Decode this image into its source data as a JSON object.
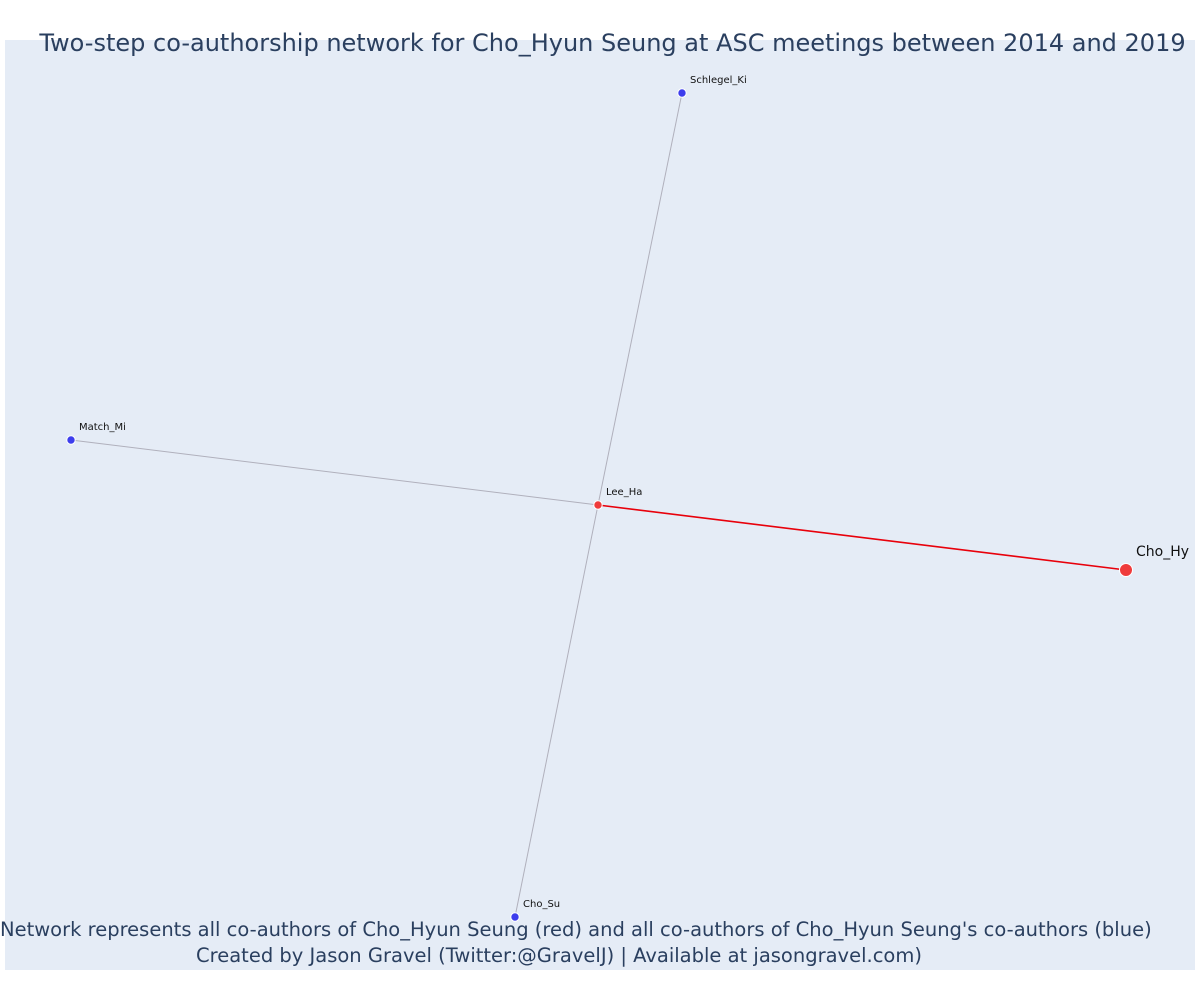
{
  "title": "Two-step co-authorship network for Cho_Hyun Seung at ASC meetings between 2014 and 2019",
  "caption": {
    "line1": "Network represents all co-authors of Cho_Hyun Seung (red) and all co-authors of Cho_Hyun Seung's co-authors (blue)",
    "line2": "Created by Jason Gravel (Twitter:@GravelJ) | Available at jasongravel.com)"
  },
  "colors": {
    "plot_background": "#e5ecf6",
    "first_step": "#ef3b3b",
    "second_step": "#3d3ded",
    "first_step_edge": "#e8000b",
    "second_step_edge": "#b0b0bc"
  },
  "nodes": [
    {
      "id": "schlegel",
      "label": "Schlegel_Ki",
      "group": "second-step"
    },
    {
      "id": "match",
      "label": "Match_Mi",
      "group": "second-step"
    },
    {
      "id": "lee",
      "label": "Lee_Ha",
      "group": "first-step"
    },
    {
      "id": "cho_hy",
      "label": "Cho_Hy",
      "group": "focal"
    },
    {
      "id": "cho_su",
      "label": "Cho_Su",
      "group": "second-step"
    }
  ],
  "edges": [
    {
      "source": "lee",
      "target": "schlegel",
      "group": "second-step"
    },
    {
      "source": "lee",
      "target": "match",
      "group": "second-step"
    },
    {
      "source": "lee",
      "target": "cho_su",
      "group": "second-step"
    },
    {
      "source": "lee",
      "target": "cho_hy",
      "group": "first-step"
    }
  ]
}
